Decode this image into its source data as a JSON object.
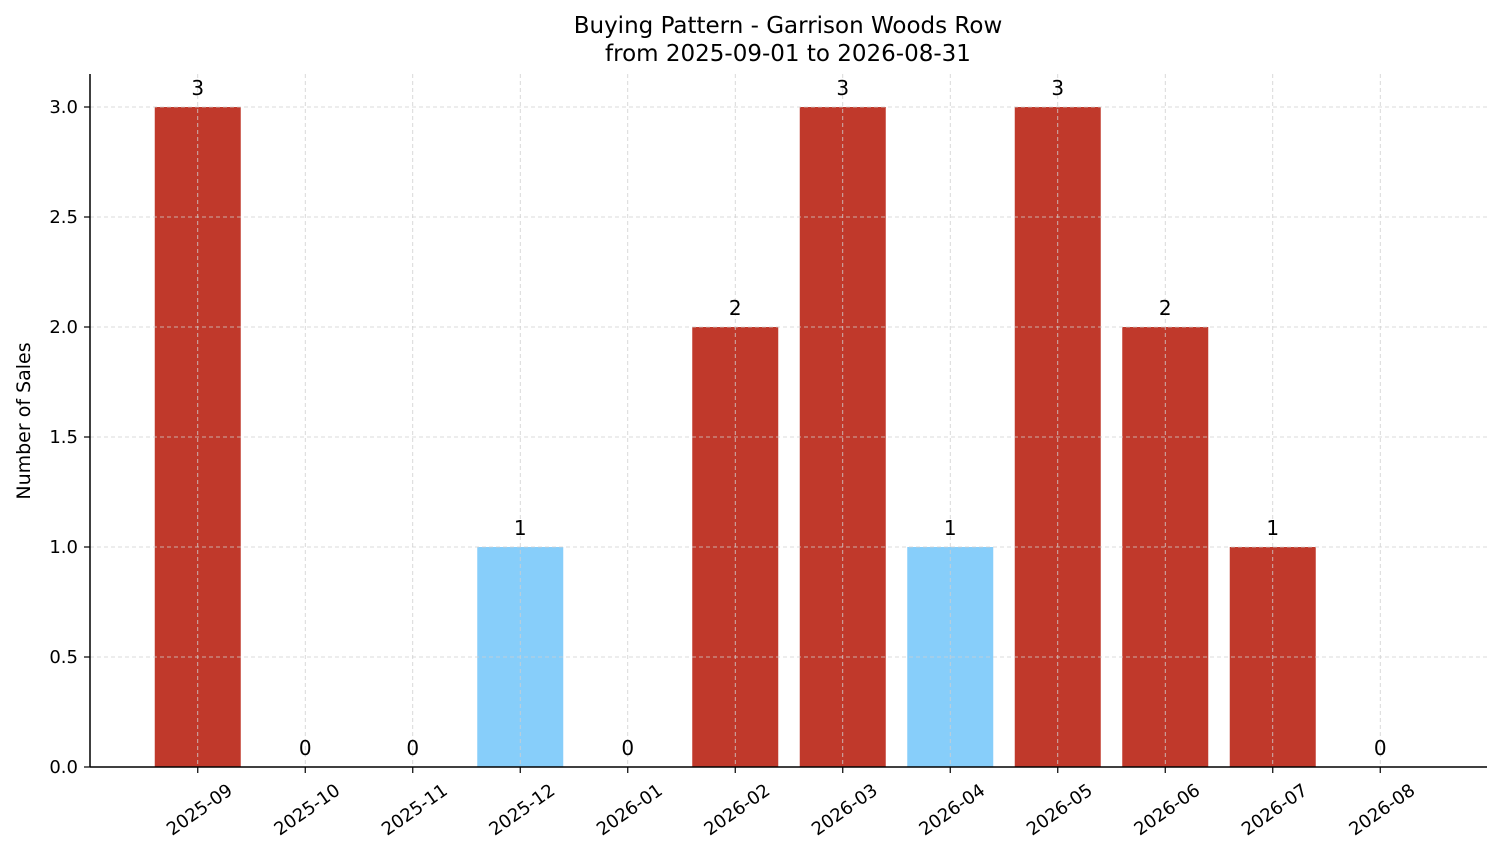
{
  "chart_data": {
    "type": "bar",
    "title": "Buying Pattern - Garrison Woods Row",
    "subtitle": "from 2025-09-01 to 2026-08-31",
    "xlabel": "",
    "ylabel": "Number of Sales",
    "categories": [
      "2025-09",
      "2025-10",
      "2025-11",
      "2025-12",
      "2026-01",
      "2026-02",
      "2026-03",
      "2026-04",
      "2026-05",
      "2026-06",
      "2026-07",
      "2026-08"
    ],
    "values": [
      3,
      0,
      0,
      1,
      0,
      2,
      3,
      1,
      3,
      2,
      1,
      0
    ],
    "data_labels": [
      "3",
      "0",
      "0",
      "1",
      "0",
      "2",
      "3",
      "1",
      "3",
      "2",
      "1",
      "0"
    ],
    "bar_colors": [
      "#c0392b",
      "#c0392b",
      "#c0392b",
      "#87cefa",
      "#c0392b",
      "#c0392b",
      "#c0392b",
      "#87cefa",
      "#c0392b",
      "#c0392b",
      "#c0392b",
      "#c0392b"
    ],
    "ylim": [
      0,
      3.15
    ],
    "yticks": [
      0.0,
      0.5,
      1.0,
      1.5,
      2.0,
      2.5,
      3.0
    ],
    "ytick_labels": [
      "0.0",
      "0.5",
      "1.0",
      "1.5",
      "2.0",
      "2.5",
      "3.0"
    ],
    "grid": true,
    "legend": "none"
  }
}
